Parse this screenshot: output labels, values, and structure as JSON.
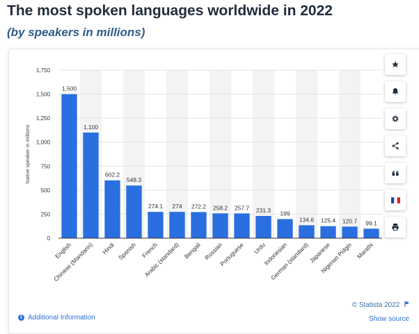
{
  "header": {
    "title": "The most spoken languages worldwide in 2022",
    "subtitle": "(by speakers in millions)"
  },
  "toolbar": {
    "buttons": [
      {
        "icon": "star-icon"
      },
      {
        "icon": "bell-icon"
      },
      {
        "icon": "gear-icon"
      },
      {
        "icon": "share-icon"
      },
      {
        "icon": "quote-icon"
      },
      {
        "icon": "french-flag-icon"
      },
      {
        "icon": "print-icon"
      }
    ]
  },
  "footer": {
    "copyright": "© Statista 2022",
    "show_source": "Show source",
    "additional_info": "Additional Information"
  },
  "colors": {
    "bar": "#2a6fe0",
    "band": "#f3f3f3",
    "grid": "#e3e3e3",
    "axis_text": "#333333",
    "accent": "#2a6fd6"
  },
  "chart_data": {
    "type": "bar",
    "title": "",
    "xlabel": "",
    "ylabel": "Native speaker in millions",
    "ylim": [
      0,
      1750
    ],
    "yticks": [
      0,
      250,
      500,
      750,
      1000,
      1250,
      1500,
      1750
    ],
    "ytick_labels": [
      "0",
      "250",
      "500",
      "750",
      "1,000",
      "1,250",
      "1,500",
      "1,750"
    ],
    "grid": true,
    "categories": [
      "English",
      "Chinese (Mandarin)",
      "Hindi",
      "Spanish",
      "French",
      "Arabic (standard)",
      "Bengali",
      "Russian",
      "Portuguese",
      "Urdu",
      "Indonesian",
      "German (standard)",
      "Japanese",
      "Nigerian Pidgin",
      "Marathi"
    ],
    "values": [
      1500,
      1100,
      602.2,
      548.3,
      274.1,
      274,
      272.2,
      258.2,
      257.7,
      231.3,
      199,
      134.6,
      125.4,
      120.7,
      99.1
    ],
    "value_labels": [
      "1,500",
      "1,100",
      "602.2",
      "548.3",
      "274.1",
      "274",
      "272.2",
      "258.2",
      "257.7",
      "231.3",
      "199",
      "134.6",
      "125.4",
      "120.7",
      "99.1"
    ]
  }
}
